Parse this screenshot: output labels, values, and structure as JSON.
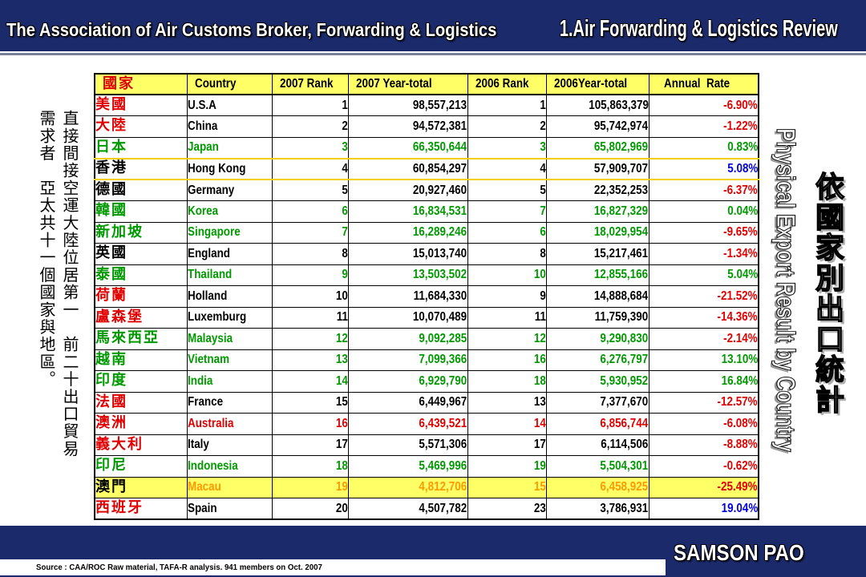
{
  "header": {
    "org_title": "The Association of Air Customs Broker, Forwarding & Logistics",
    "section_title": "1.Air Forwarding & Logistics Review"
  },
  "side_note": {
    "line1": "直接間接空運大陸位居第一　前二十出口貿易",
    "line2": "需求者　亞太共十一個國家與地區。"
  },
  "side_titles": {
    "chinese": "依國家別出口統計",
    "english": "Physical Export Result by Country"
  },
  "colors": {
    "header_bg": "#1B2A6B",
    "table_header_bg": "#FFFF66",
    "red": "#E00000",
    "green": "#009A00",
    "blue": "#0000E0",
    "black": "#000000",
    "orange": "#FF9900",
    "yellow": "#FFFF66",
    "gold": "#F0D000"
  },
  "table": {
    "columns": [
      "國家",
      "Country",
      "2007 Rank",
      "2007 Year-total",
      "2006 Rank",
      "2006Year-total",
      "Annual  Rate"
    ],
    "rows": [
      {
        "zh": "美國",
        "country": "U.S.A",
        "rank_2007": 1,
        "total_2007": "98,557,213",
        "rank_2006": 1,
        "total_2006": "105,863,379",
        "annual_rate": "-6.90%",
        "zh_color": "red",
        "text_color": "black",
        "rate_color": "red"
      },
      {
        "zh": "大陸",
        "country": "China",
        "rank_2007": 2,
        "total_2007": "94,572,381",
        "rank_2006": 2,
        "total_2006": "95,742,974",
        "annual_rate": "-1.22%",
        "zh_color": "red",
        "text_color": "black",
        "rate_color": "red"
      },
      {
        "zh": "日本",
        "country": "Japan",
        "rank_2007": 3,
        "total_2007": "66,350,644",
        "rank_2006": 3,
        "total_2006": "65,802,969",
        "annual_rate": "0.83%",
        "zh_color": "green",
        "text_color": "green",
        "rate_color": "green"
      },
      {
        "zh": "香港",
        "country": "Hong Kong",
        "rank_2007": 4,
        "total_2007": "60,854,297",
        "rank_2006": 4,
        "total_2006": "57,909,707",
        "annual_rate": "5.08%",
        "zh_color": "black",
        "text_color": "black",
        "rate_color": "blue",
        "row_border": "gold"
      },
      {
        "zh": "德國",
        "country": "Germany",
        "rank_2007": 5,
        "total_2007": "20,927,460",
        "rank_2006": 5,
        "total_2006": "22,352,253",
        "annual_rate": "-6.37%",
        "zh_color": "black",
        "text_color": "black",
        "rate_color": "red"
      },
      {
        "zh": "韓國",
        "country": "Korea",
        "rank_2007": 6,
        "total_2007": "16,834,531",
        "rank_2006": 7,
        "total_2006": "16,827,329",
        "annual_rate": "0.04%",
        "zh_color": "green",
        "text_color": "green",
        "rate_color": "green"
      },
      {
        "zh": "新加坡",
        "country": "Singapore",
        "rank_2007": 7,
        "total_2007": "16,289,246",
        "rank_2006": 6,
        "total_2006": "18,029,954",
        "annual_rate": "-9.65%",
        "zh_color": "green",
        "text_color": "green",
        "rate_color": "red"
      },
      {
        "zh": "英國",
        "country": "England",
        "rank_2007": 8,
        "total_2007": "15,013,740",
        "rank_2006": 8,
        "total_2006": "15,217,461",
        "annual_rate": "-1.34%",
        "zh_color": "black",
        "text_color": "black",
        "rate_color": "red"
      },
      {
        "zh": "泰國",
        "country": "Thailand",
        "rank_2007": 9,
        "total_2007": "13,503,502",
        "rank_2006": 10,
        "total_2006": "12,855,166",
        "annual_rate": "5.04%",
        "zh_color": "green",
        "text_color": "green",
        "rate_color": "green"
      },
      {
        "zh": "荷蘭",
        "country": "Holland",
        "rank_2007": 10,
        "total_2007": "11,684,330",
        "rank_2006": 9,
        "total_2006": "14,888,684",
        "annual_rate": "-21.52%",
        "zh_color": "red",
        "text_color": "black",
        "rate_color": "red"
      },
      {
        "zh": "盧森堡",
        "country": "Luxemburg",
        "rank_2007": 11,
        "total_2007": "10,070,489",
        "rank_2006": 11,
        "total_2006": "11,759,390",
        "annual_rate": "-14.36%",
        "zh_color": "red",
        "text_color": "black",
        "rate_color": "red"
      },
      {
        "zh": "馬來西亞",
        "country": "Malaysia",
        "rank_2007": 12,
        "total_2007": "9,092,285",
        "rank_2006": 12,
        "total_2006": "9,290,830",
        "annual_rate": "-2.14%",
        "zh_color": "green",
        "text_color": "green",
        "rate_color": "red"
      },
      {
        "zh": "越南",
        "country": "Vietnam",
        "rank_2007": 13,
        "total_2007": "7,099,366",
        "rank_2006": 16,
        "total_2006": "6,276,797",
        "annual_rate": "13.10%",
        "zh_color": "green",
        "text_color": "green",
        "rate_color": "green"
      },
      {
        "zh": "印度",
        "country": "India",
        "rank_2007": 14,
        "total_2007": "6,929,790",
        "rank_2006": 18,
        "total_2006": "5,930,952",
        "annual_rate": "16.84%",
        "zh_color": "green",
        "text_color": "green",
        "rate_color": "green"
      },
      {
        "zh": "法國",
        "country": "France",
        "rank_2007": 15,
        "total_2007": "6,449,967",
        "rank_2006": 13,
        "total_2006": "7,377,670",
        "annual_rate": "-12.57%",
        "zh_color": "red",
        "text_color": "black",
        "rate_color": "red"
      },
      {
        "zh": "澳洲",
        "country": "Australia",
        "rank_2007": 16,
        "total_2007": "6,439,521",
        "rank_2006": 14,
        "total_2006": "6,856,744",
        "annual_rate": "-6.08%",
        "zh_color": "red",
        "text_color": "red",
        "rate_color": "red"
      },
      {
        "zh": "義大利",
        "country": "Italy",
        "rank_2007": 17,
        "total_2007": "5,571,306",
        "rank_2006": 17,
        "total_2006": "6,114,506",
        "annual_rate": "-8.88%",
        "zh_color": "red",
        "text_color": "black",
        "rate_color": "red"
      },
      {
        "zh": "印尼",
        "country": "Indonesia",
        "rank_2007": 18,
        "total_2007": "5,469,996",
        "rank_2006": 19,
        "total_2006": "5,504,301",
        "annual_rate": "-0.62%",
        "zh_color": "green",
        "text_color": "green",
        "rate_color": "red"
      },
      {
        "zh": "澳門",
        "country": "Macau",
        "rank_2007": 19,
        "total_2007": "4,812,706",
        "rank_2006": 15,
        "total_2006": "6,458,925",
        "annual_rate": "-25.49%",
        "zh_color": "black",
        "text_color": "orange",
        "rate_color": "red",
        "row_bg": "yellow"
      },
      {
        "zh": "西班牙",
        "country": "Spain",
        "rank_2007": 20,
        "total_2007": "4,507,782",
        "rank_2006": 23,
        "total_2006": "3,786,931",
        "annual_rate": "19.04%",
        "zh_color": "red",
        "text_color": "black",
        "rate_color": "blue"
      }
    ]
  },
  "footer": {
    "source": "Source : CAA/ROC Raw material, TAFA-R analysis. 941 members on Oct. 2007",
    "author": "SAMSON PAO"
  }
}
